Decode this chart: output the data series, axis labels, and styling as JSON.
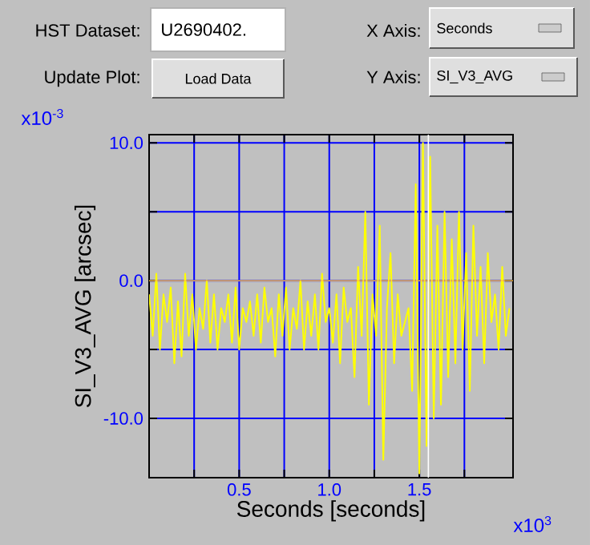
{
  "chart_data": {
    "type": "line",
    "xlabel": "Seconds [seconds]",
    "ylabel": "SI_V3_AVG [arcsec]",
    "x": [
      0,
      0.02,
      0.04,
      0.06,
      0.08,
      0.1,
      0.12,
      0.14,
      0.16,
      0.18,
      0.2,
      0.22,
      0.24,
      0.26,
      0.28,
      0.3,
      0.32,
      0.34,
      0.36,
      0.38,
      0.4,
      0.42,
      0.44,
      0.46,
      0.48,
      0.5,
      0.52,
      0.54,
      0.56,
      0.58,
      0.6,
      0.62,
      0.64,
      0.66,
      0.68,
      0.7,
      0.72,
      0.74,
      0.76,
      0.78,
      0.8,
      0.82,
      0.84,
      0.86,
      0.88,
      0.9,
      0.92,
      0.94,
      0.96,
      0.98,
      1.0,
      1.02,
      1.04,
      1.06,
      1.08,
      1.1,
      1.12,
      1.14,
      1.16,
      1.18,
      1.2,
      1.22,
      1.24,
      1.26,
      1.28,
      1.3,
      1.32,
      1.34,
      1.36,
      1.38,
      1.4,
      1.42,
      1.44,
      1.46,
      1.48,
      1.5,
      1.52,
      1.54,
      1.56,
      1.58,
      1.6,
      1.62,
      1.64,
      1.66,
      1.68,
      1.7,
      1.72,
      1.74,
      1.76,
      1.78,
      1.8,
      1.82,
      1.84,
      1.86,
      1.88,
      1.9,
      1.92,
      1.94,
      1.96,
      1.98,
      2.0
    ],
    "series": [
      {
        "color": "#ffff00",
        "values": [
          -1,
          -4,
          0.5,
          -5,
          -1,
          -3,
          -0.5,
          -6,
          -1.5,
          -5.5,
          0.5,
          -4,
          -1,
          -5,
          -2,
          -3.5,
          0,
          -4.5,
          -1,
          -5,
          -2,
          -3,
          -1,
          -4.5,
          -0.5,
          -5,
          -2,
          -3,
          -1.5,
          -4,
          -1,
          -4.5,
          -0.5,
          -3,
          -2,
          -5.5,
          -1,
          -4,
          -0.5,
          -5,
          -2,
          -3.5,
          0,
          -5,
          -1.5,
          -4,
          -1,
          -5,
          0.5,
          -3,
          -2,
          -4.5,
          -1,
          -6,
          -0.5,
          -3,
          -2,
          -7,
          1,
          -4,
          5,
          -9,
          -1,
          -4,
          4,
          -13,
          -2,
          2,
          -6,
          -1,
          -4,
          -3,
          -2,
          -8,
          7,
          -14,
          10,
          -12,
          9,
          -10,
          4,
          -9,
          5,
          -7,
          3,
          -6,
          5,
          -5,
          2,
          -8,
          4,
          -4,
          1,
          -6,
          2,
          -3,
          -1,
          -5,
          1,
          -4,
          -2
        ]
      }
    ],
    "xlim": [
      0,
      2.02
    ],
    "ylim": [
      -14.3,
      10.6
    ],
    "xticks": [
      {
        "value": 0.25,
        "label": null
      },
      {
        "value": 0.5,
        "label": "0.5"
      },
      {
        "value": 0.75,
        "label": null
      },
      {
        "value": 1.0,
        "label": "1.0"
      },
      {
        "value": 1.25,
        "label": null
      },
      {
        "value": 1.5,
        "label": "1.5"
      },
      {
        "value": 1.75,
        "label": null
      }
    ],
    "yticks": [
      {
        "value": -10,
        "label": "-10.0"
      },
      {
        "value": -5,
        "label": null
      },
      {
        "value": 0,
        "label": "0.0"
      },
      {
        "value": 5,
        "label": null
      },
      {
        "value": 10,
        "label": "10.0"
      }
    ],
    "grid": true,
    "ref_lines": [
      {
        "axis": "y",
        "value": 0,
        "color": "#ffc040"
      },
      {
        "axis": "x",
        "value": 1.55,
        "color": "#ffffff"
      }
    ],
    "annotations": [
      "HST Dataset:",
      "U2690402.",
      "Update Plot:",
      "Load Data",
      "X Axis:",
      "Seconds",
      "Y Axis:",
      "SI_V3_AVG",
      "x10$^{-3}$",
      "x10$^{3}$"
    ]
  }
}
